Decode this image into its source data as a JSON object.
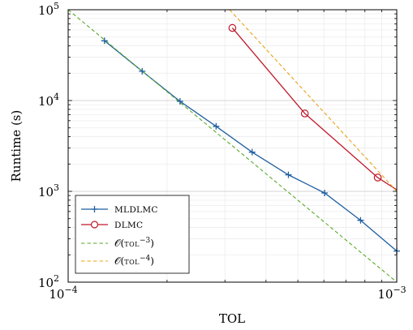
{
  "chart_data": {
    "type": "line",
    "title": "",
    "xlabel": "TOL",
    "ylabel": "Runtime (s)",
    "xscale": "log",
    "yscale": "log",
    "xlim": [
      0.0001,
      0.001
    ],
    "ylim": [
      100,
      100000
    ],
    "grid": true,
    "legend_position": "bottom-left",
    "x_ticks": [
      {
        "base": "10",
        "exp": "−4"
      },
      {
        "base": "10",
        "exp": "−3"
      }
    ],
    "y_ticks": [
      {
        "base": "10",
        "exp": "2"
      },
      {
        "base": "10",
        "exp": "3"
      },
      {
        "base": "10",
        "exp": "4"
      },
      {
        "base": "10",
        "exp": "5"
      }
    ],
    "series": [
      {
        "name": "MLDLMC",
        "color": "#1f5fa0",
        "marker": "plus",
        "style": "solid",
        "points": [
          [
            0.000129,
            45500
          ],
          [
            0.000168,
            21000
          ],
          [
            0.000219,
            9800
          ],
          [
            0.000282,
            5200
          ],
          [
            0.000363,
            2700
          ],
          [
            0.000468,
            1520
          ],
          [
            0.000603,
            960
          ],
          [
            0.000776,
            480
          ],
          [
            0.001,
            220
          ]
        ]
      },
      {
        "name": "DLMC",
        "color": "#c0182a",
        "marker": "circle",
        "style": "solid",
        "points": [
          [
            0.000316,
            63000
          ],
          [
            0.000525,
            7200
          ],
          [
            0.000875,
            1420
          ],
          [
            0.001,
            1040
          ]
        ]
      },
      {
        "name_parts": {
          "prefix": "𝒪(",
          "sc": "tol",
          "sup": "−3",
          "suffix": ")"
        },
        "color": "#5aaa2a",
        "marker": "none",
        "style": "dashed",
        "points": [
          [
            0.0001,
            100000
          ],
          [
            0.001,
            100
          ]
        ]
      },
      {
        "name_parts": {
          "prefix": "𝒪(",
          "sc": "tol",
          "sup": "−4",
          "suffix": ")"
        },
        "color": "#e8a317",
        "marker": "none",
        "style": "dashed",
        "points": [
          [
            0.00031,
            100000
          ],
          [
            0.001,
            1000
          ]
        ]
      }
    ]
  }
}
